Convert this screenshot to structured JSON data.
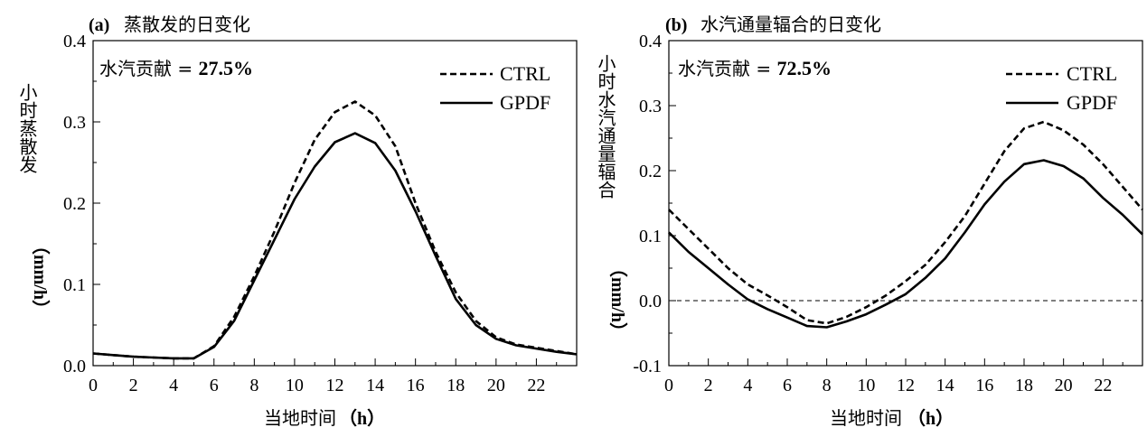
{
  "chart_data": [
    {
      "type": "line",
      "panel_label": "(a)",
      "title": "蒸散发的日变化",
      "annotation_prefix": "水汽贡献 = ",
      "annotation_value": "27.5%",
      "xlabel": "当地时间",
      "xlabel_unit": "（h）",
      "ylabel": "小时蒸散发",
      "ylabel_unit": "（mm/h）",
      "xlim": [
        0,
        24
      ],
      "ylim": [
        0,
        0.4
      ],
      "xticks": [
        0,
        2,
        4,
        6,
        8,
        10,
        12,
        14,
        16,
        18,
        20,
        22
      ],
      "yticks": [
        0,
        0.1,
        0.2,
        0.3,
        0.4
      ],
      "ytick_labels": [
        "0.0",
        "0.1",
        "0.2",
        "0.3",
        "0.4"
      ],
      "zero_line": false,
      "x": [
        0,
        1,
        2,
        3,
        4,
        5,
        6,
        7,
        8,
        9,
        10,
        11,
        12,
        13,
        14,
        15,
        16,
        17,
        18,
        19,
        20,
        21,
        22,
        23,
        24
      ],
      "series": [
        {
          "name": "CTRL",
          "style": "dashed",
          "values": [
            0.015,
            0.013,
            0.011,
            0.01,
            0.009,
            0.009,
            0.024,
            0.06,
            0.11,
            0.165,
            0.225,
            0.278,
            0.312,
            0.325,
            0.308,
            0.27,
            0.2,
            0.14,
            0.09,
            0.055,
            0.035,
            0.026,
            0.022,
            0.018,
            0.014
          ]
        },
        {
          "name": "GPDF",
          "style": "solid",
          "values": [
            0.015,
            0.013,
            0.011,
            0.01,
            0.009,
            0.009,
            0.023,
            0.055,
            0.105,
            0.155,
            0.205,
            0.245,
            0.275,
            0.286,
            0.274,
            0.24,
            0.19,
            0.135,
            0.082,
            0.05,
            0.033,
            0.025,
            0.021,
            0.017,
            0.014
          ]
        }
      ]
    },
    {
      "type": "line",
      "panel_label": "(b)",
      "title": "水汽通量辐合的日变化",
      "annotation_prefix": "水汽贡献 = ",
      "annotation_value": "72.5%",
      "xlabel": "当地时间",
      "xlabel_unit": "（h）",
      "ylabel": "小时水汽通量辐合",
      "ylabel_unit": "（mm/h）",
      "xlim": [
        0,
        24
      ],
      "ylim": [
        -0.1,
        0.4
      ],
      "xticks": [
        0,
        2,
        4,
        6,
        8,
        10,
        12,
        14,
        16,
        18,
        20,
        22
      ],
      "yticks": [
        -0.1,
        0,
        0.1,
        0.2,
        0.3,
        0.4
      ],
      "ytick_labels": [
        "-0.1",
        "0.0",
        "0.1",
        "0.2",
        "0.3",
        "0.4"
      ],
      "zero_line": true,
      "x": [
        0,
        1,
        2,
        3,
        4,
        5,
        6,
        7,
        8,
        9,
        10,
        11,
        12,
        13,
        14,
        15,
        16,
        17,
        18,
        19,
        20,
        21,
        22,
        23,
        24
      ],
      "series": [
        {
          "name": "CTRL",
          "style": "dashed",
          "values": [
            0.14,
            0.11,
            0.08,
            0.05,
            0.025,
            0.008,
            -0.01,
            -0.03,
            -0.035,
            -0.025,
            -0.01,
            0.008,
            0.03,
            0.055,
            0.09,
            0.13,
            0.18,
            0.23,
            0.265,
            0.275,
            0.262,
            0.24,
            0.21,
            0.175,
            0.14
          ]
        },
        {
          "name": "GPDF",
          "style": "solid",
          "values": [
            0.105,
            0.075,
            0.05,
            0.025,
            0.002,
            -0.013,
            -0.026,
            -0.039,
            -0.041,
            -0.032,
            -0.021,
            -0.006,
            0.01,
            0.035,
            0.065,
            0.105,
            0.148,
            0.183,
            0.21,
            0.216,
            0.207,
            0.188,
            0.158,
            0.132,
            0.102
          ]
        }
      ]
    }
  ]
}
